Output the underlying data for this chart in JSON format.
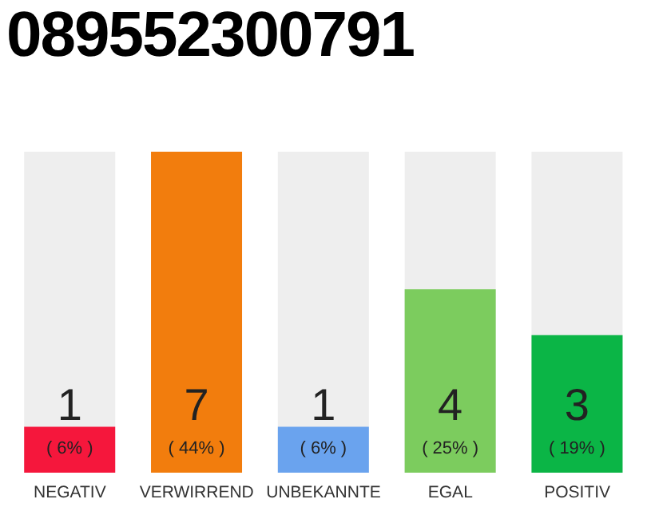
{
  "chart_data": {
    "type": "bar",
    "title": "089552300791",
    "categories": [
      "NEGATIV",
      "VERWIRREND",
      "UNBEKANNTE",
      "EGAL",
      "POSITIV"
    ],
    "values": [
      1,
      7,
      1,
      4,
      3
    ],
    "colors": [
      "#f5173c",
      "#f27d0d",
      "#6aa3ee",
      "#7ccc5e",
      "#0bb546"
    ],
    "value_labels": [
      "1",
      "7",
      "1",
      "4",
      "3"
    ],
    "annotations": [
      "( 6% )",
      "( 44% )",
      "( 6% )",
      "( 25% )",
      "( 19% )"
    ]
  }
}
